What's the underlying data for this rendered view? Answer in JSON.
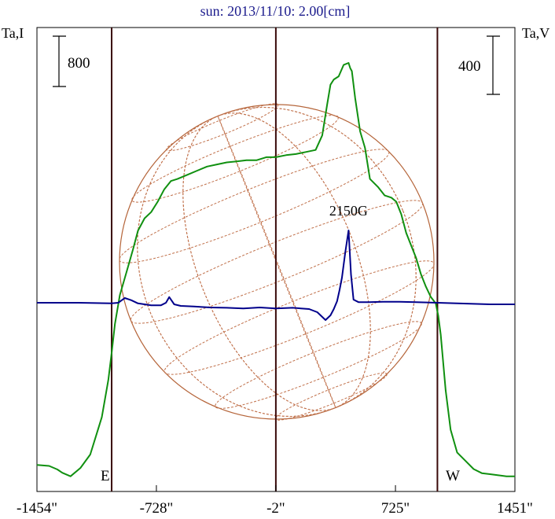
{
  "chart_data": {
    "type": "line",
    "title": "sun: 2013/11/10: 2.00[cm]",
    "ylabel_left": "Ta,I",
    "ylabel_right": "Ta,V",
    "scale_bar_left": "800",
    "scale_bar_right": "400",
    "x_ticks": [
      {
        "value": -1454,
        "label": "-1454\""
      },
      {
        "value": -728,
        "label": "-728\""
      },
      {
        "value": -2,
        "label": "-2\""
      },
      {
        "value": 725,
        "label": "725\""
      },
      {
        "value": 1451,
        "label": "1451\""
      }
    ],
    "xlim": [
      -1454,
      1451
    ],
    "vertical_lines": [
      -1000,
      -2,
      980
    ],
    "limb_labels": {
      "east": "E",
      "west": "W"
    },
    "annotation": {
      "text": "2150G",
      "x": 440
    },
    "series": [
      {
        "color": "#109010",
        "x": [
          -1454,
          -1380,
          -1330,
          -1300,
          -1250,
          -1190,
          -1130,
          -1060,
          -1020,
          -1000,
          -980,
          -950,
          -910,
          -870,
          -840,
          -800,
          -760,
          -720,
          -680,
          -640,
          -600,
          -540,
          -480,
          -420,
          -360,
          -300,
          -240,
          -180,
          -120,
          -60,
          -2,
          60,
          120,
          180,
          240,
          280,
          310,
          330,
          350,
          380,
          410,
          440,
          450,
          460,
          480,
          510,
          540,
          570,
          620,
          660,
          700,
          730,
          760,
          790,
          820,
          850,
          880,
          910,
          940,
          970,
          985,
          1000,
          1030,
          1060,
          1100,
          1150,
          1200,
          1250,
          1300,
          1350,
          1400,
          1451
        ],
        "y": [
          60,
          55,
          38,
          22,
          5,
          45,
          110,
          290,
          470,
          600,
          740,
          880,
          990,
          1100,
          1190,
          1250,
          1280,
          1330,
          1390,
          1430,
          1440,
          1460,
          1480,
          1500,
          1510,
          1520,
          1525,
          1530,
          1530,
          1545,
          1545,
          1555,
          1560,
          1570,
          1580,
          1650,
          1800,
          1895,
          1920,
          1935,
          1990,
          2000,
          1975,
          1960,
          1830,
          1670,
          1590,
          1440,
          1400,
          1360,
          1350,
          1330,
          1270,
          1180,
          1120,
          1060,
          980,
          920,
          870,
          840,
          780,
          690,
          420,
          230,
          120,
          80,
          40,
          20,
          15,
          10,
          5,
          5
        ]
      },
      {
        "color": "#00008b",
        "x": [
          -1454,
          -1200,
          -1000,
          -960,
          -920,
          -880,
          -840,
          -800,
          -760,
          -700,
          -670,
          -650,
          -620,
          -580,
          -500,
          -400,
          -300,
          -200,
          -100,
          -2,
          100,
          200,
          250,
          300,
          330,
          350,
          370,
          385,
          400,
          420,
          440,
          455,
          470,
          500,
          560,
          650,
          750,
          850,
          980,
          1100,
          1300,
          1451
        ],
        "y": [
          0,
          0,
          -2,
          0,
          15,
          8,
          -2,
          -5,
          -8,
          -8,
          0,
          18,
          -5,
          -10,
          -12,
          -15,
          -16,
          -18,
          -15,
          -18,
          -16,
          -20,
          -30,
          -55,
          -40,
          -20,
          5,
          40,
          80,
          160,
          230,
          90,
          10,
          2,
          2,
          3,
          3,
          2,
          0,
          -2,
          -5,
          -5
        ]
      }
    ]
  }
}
